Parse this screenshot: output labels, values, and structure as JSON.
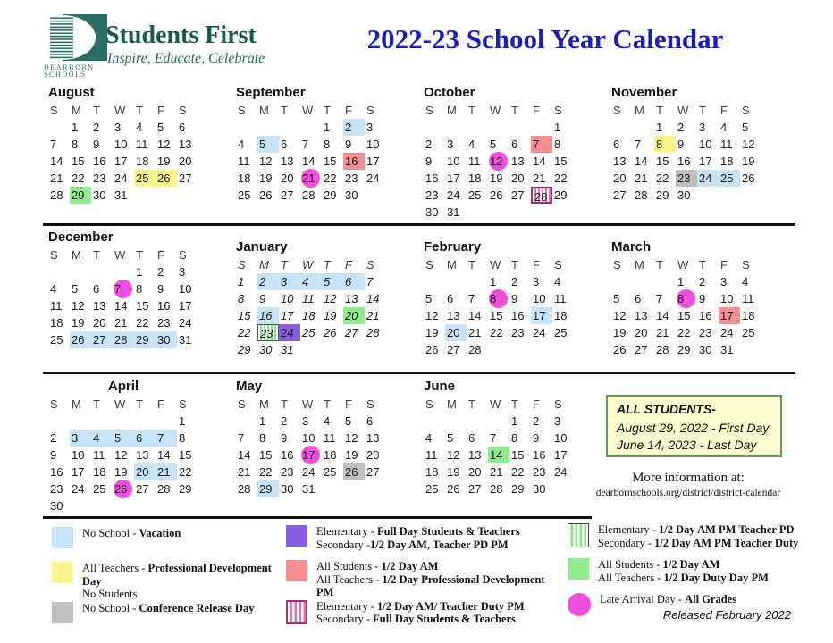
{
  "header": {
    "title": "2022-23 School Year Calendar",
    "logo": {
      "brand_name": "Students First",
      "tagline": "Inspire, Educate, Celebrate",
      "brand_top": "DEARBORN",
      "brand_bottom": "SCHOOLS"
    }
  },
  "colors": {
    "title_blue": "#1d1db8",
    "brand_teal": "#2a6e66",
    "vacation_blue": "#c7e3f7",
    "pd_yellow": "#f9f58d",
    "half_day_green": "#8fec8f",
    "half_day_salmon": "#f48f92",
    "conference_gray": "#bfbfbf",
    "elementary_purple": "#8a5ce0",
    "late_arrival_magenta": "#ee4fdc",
    "pink_stripe": "#d478b5",
    "green_stripe": "#86e386"
  },
  "weekdays": [
    "S",
    "M",
    "T",
    "W",
    "T",
    "F",
    "S"
  ],
  "months": [
    {
      "name": "August",
      "start": 1,
      "days": 31,
      "italic": false,
      "center_title": false,
      "highlights": {
        "25": "yellow",
        "26": "yellow",
        "29": "green"
      }
    },
    {
      "name": "September",
      "start": 4,
      "days": 30,
      "italic": false,
      "center_title": false,
      "highlights": {
        "2": "blue",
        "5": "blue",
        "16": "salmon",
        "21": "circle"
      }
    },
    {
      "name": "October",
      "start": 6,
      "days": 31,
      "italic": false,
      "center_title": false,
      "highlights": {
        "7": "salmon",
        "12": "circle",
        "28": "pink_striped"
      }
    },
    {
      "name": "November",
      "start": 2,
      "days": 30,
      "italic": false,
      "center_title": false,
      "highlights": {
        "8": "yellow",
        "23": "gray",
        "24": "blue",
        "25": "blue"
      }
    },
    {
      "name": "December",
      "start": 4,
      "days": 31,
      "italic": false,
      "center_title": false,
      "highlights": {
        "7": "circle",
        "26": "blue",
        "27": "blue",
        "28": "blue",
        "29": "blue",
        "30": "blue"
      }
    },
    {
      "name": "January",
      "start": 0,
      "days": 31,
      "italic": true,
      "center_title": false,
      "highlights": {
        "2": "blue",
        "3": "blue",
        "4": "blue",
        "5": "blue",
        "6": "blue",
        "16": "blue",
        "20": "green",
        "23": "green_striped",
        "24": "purple"
      }
    },
    {
      "name": "February",
      "start": 3,
      "days": 28,
      "italic": false,
      "center_title": false,
      "highlights": {
        "8": "circle",
        "17": "blue",
        "20": "blue"
      }
    },
    {
      "name": "March",
      "start": 3,
      "days": 31,
      "italic": false,
      "center_title": false,
      "highlights": {
        "8": "circle",
        "17": "salmon"
      }
    },
    {
      "name": "April",
      "start": 6,
      "days": 30,
      "italic": false,
      "center_title": true,
      "highlights": {
        "3": "blue",
        "4": "blue",
        "5": "blue",
        "6": "blue",
        "7": "blue",
        "20": "blue",
        "21": "blue",
        "26": "circle"
      }
    },
    {
      "name": "May",
      "start": 1,
      "days": 31,
      "italic": false,
      "center_title": false,
      "highlights": {
        "17": "circle",
        "26": "gray",
        "29": "blue"
      }
    },
    {
      "name": "June",
      "start": 4,
      "days": 30,
      "italic": false,
      "center_title": false,
      "highlights": {
        "14": "green"
      }
    }
  ],
  "info_box": {
    "title": "ALL STUDENTS-",
    "line1": "August 29, 2022 - First Day",
    "line2": "June 14, 2023 - Last Day"
  },
  "more_info": {
    "line1": "More information at:",
    "line2": "dearbornschools.org/district/district-calendar"
  },
  "legend": {
    "columns": [
      {
        "items": [
          {
            "swatch": "blue",
            "lines": [
              [
                {
                  "t": "No School - "
                },
                {
                  "t": "Vacation",
                  "b": true
                }
              ]
            ]
          },
          {
            "swatch": "yellow",
            "lines": [
              [
                {
                  "t": "All Teachers - "
                },
                {
                  "t": "Professional Development Day",
                  "b": true
                }
              ],
              [
                {
                  "t": "No Students"
                }
              ]
            ]
          },
          {
            "swatch": "gray",
            "lines": [
              [
                {
                  "t": "No School - "
                },
                {
                  "t": "Conference Release Day",
                  "b": true
                }
              ]
            ]
          }
        ]
      },
      {
        "items": [
          {
            "swatch": "purple",
            "lines": [
              [
                {
                  "t": "Elementary - "
                },
                {
                  "t": "Full Day Students & Teachers",
                  "b": true
                }
              ],
              [
                {
                  "t": "Secondary -"
                },
                {
                  "t": "1/2 Day AM, Teacher PD PM",
                  "b": true
                }
              ]
            ]
          },
          {
            "swatch": "salmon",
            "lines": [
              [
                {
                  "t": "All Students - "
                },
                {
                  "t": "1/2 Day AM",
                  "b": true
                }
              ],
              [
                {
                  "t": "All Teachers - "
                },
                {
                  "t": "1/2 Day Professional Development PM",
                  "b": true
                }
              ]
            ]
          },
          {
            "swatch": "pink_striped",
            "lines": [
              [
                {
                  "t": "Elementary - "
                },
                {
                  "t": "1/2 Day AM/ Teacher Duty PM",
                  "b": true
                }
              ],
              [
                {
                  "t": "Secondary - "
                },
                {
                  "t": "Full Day Students & Teachers",
                  "b": true
                }
              ]
            ]
          }
        ]
      },
      {
        "items": [
          {
            "swatch": "green_striped",
            "lines": [
              [
                {
                  "t": "Elementary - "
                },
                {
                  "t": "1/2 Day AM PM Teacher PD",
                  "b": true
                }
              ],
              [
                {
                  "t": "Secondary  - "
                },
                {
                  "t": "1/2 Day AM PM Teacher Duty",
                  "b": true
                }
              ]
            ]
          },
          {
            "swatch": "green",
            "lines": [
              [
                {
                  "t": "All Students -  "
                },
                {
                  "t": "1/2 Day AM",
                  "b": true
                }
              ],
              [
                {
                  "t": "All Teachers - "
                },
                {
                  "t": "1/2 Day Duty Day PM",
                  "b": true
                }
              ]
            ]
          },
          {
            "swatch": "circle",
            "lines": [
              [
                {
                  "t": "Late Arrival Day  - "
                },
                {
                  "t": "All Grades",
                  "b": true
                }
              ]
            ]
          }
        ]
      }
    ]
  },
  "released": "Released February 2022"
}
